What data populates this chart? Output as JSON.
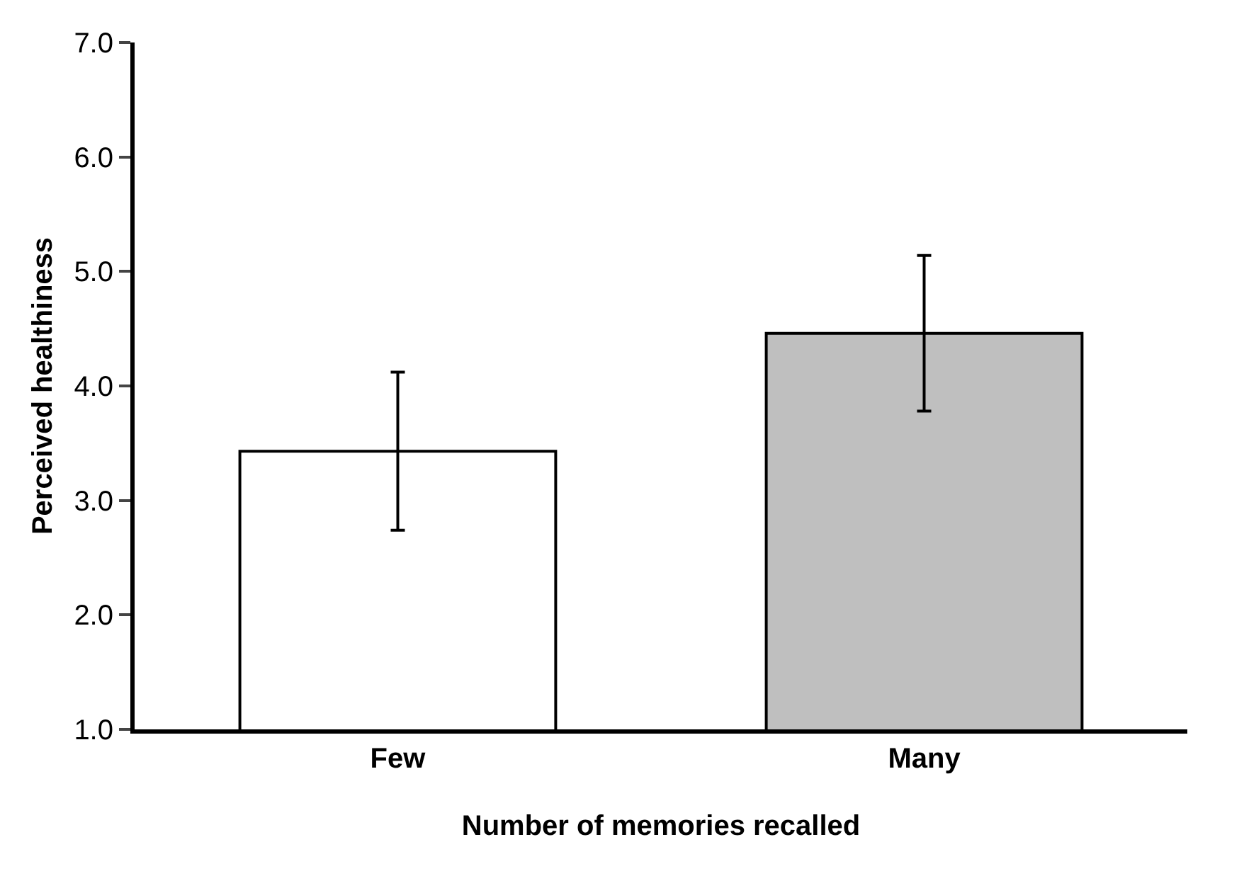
{
  "chart_data": {
    "type": "bar",
    "xlabel": "Number of memories recalled",
    "ylabel": "Perceived healthiness",
    "categories": [
      "Few",
      "Many"
    ],
    "values": [
      3.43,
      4.46
    ],
    "colors": [
      "#ffffff",
      "#bfbfbf"
    ],
    "errors": [
      0.69,
      0.68
    ],
    "ylim": [
      1.0,
      7.0
    ],
    "yticks": [
      {
        "value": 1,
        "label": "1.0"
      },
      {
        "value": 2,
        "label": "2.0"
      },
      {
        "value": 3,
        "label": "3.0"
      },
      {
        "value": 4,
        "label": "4.0"
      },
      {
        "value": 5,
        "label": "5.0"
      },
      {
        "value": 6,
        "label": "6.0"
      },
      {
        "value": 7,
        "label": "7.0"
      }
    ],
    "legend": false
  }
}
